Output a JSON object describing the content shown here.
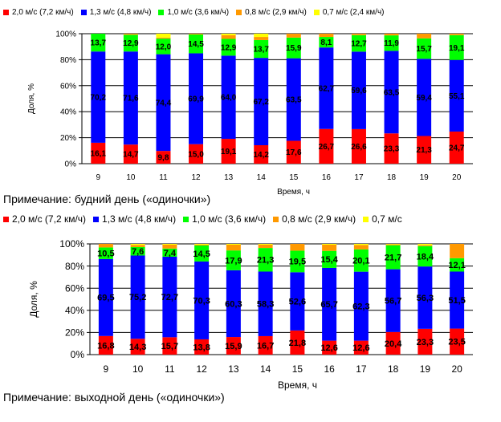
{
  "colors": {
    "s2_0": "#ff0000",
    "s1_3": "#0000ff",
    "s1_0": "#00ff00",
    "s0_8": "#ff9900",
    "s0_7": "#ffff00",
    "grid": "#000000"
  },
  "chart_data": [
    {
      "type": "bar",
      "stacked": true,
      "title": "",
      "xlabel": "Время, ч",
      "ylabel": "Доля, %",
      "ylim": [
        0,
        100
      ],
      "yticks": [
        "0%",
        "20%",
        "40%",
        "60%",
        "80%",
        "100%"
      ],
      "grid": true,
      "legend_position": "top",
      "categories": [
        "9",
        "10",
        "11",
        "12",
        "13",
        "14",
        "15",
        "16",
        "17",
        "18",
        "19",
        "20"
      ],
      "series": [
        {
          "name": "2,0 м/с (7,2 км/ч)",
          "color_key": "s2_0",
          "values": [
            16.1,
            14.7,
            9.8,
            15.0,
            19.1,
            14.2,
            17.6,
            26.7,
            26.6,
            23.3,
            21.3,
            24.7
          ],
          "labels": [
            "16,1",
            "14,7",
            "9,8",
            "15,0",
            "19,1",
            "14,2",
            "17,6",
            "26,7",
            "26,6",
            "23,3",
            "21,3",
            "24,7"
          ]
        },
        {
          "name": "1,3 м/с (4,8 км/ч)",
          "color_key": "s1_3",
          "values": [
            70.2,
            71.6,
            74.4,
            69.9,
            64.0,
            67.2,
            63.5,
            62.7,
            59.6,
            63.5,
            59.4,
            55.1
          ],
          "labels": [
            "70,2",
            "71,6",
            "74,4",
            "69,9",
            "64,0",
            "67,2",
            "63,5",
            "62,7",
            "59,6",
            "63,5",
            "59,4",
            "55,1"
          ]
        },
        {
          "name": "1,0 м/с (3,6 км/ч)",
          "color_key": "s1_0",
          "values": [
            13.7,
            12.9,
            12.0,
            14.5,
            12.9,
            13.7,
            15.9,
            8.1,
            12.7,
            11.9,
            15.7,
            19.1
          ],
          "labels": [
            "13,7",
            "12,9",
            "12,0",
            "14,5",
            "12,9",
            "13,7",
            "15,9",
            "8,1",
            "12,7",
            "11,9",
            "15,7",
            "19,1"
          ]
        },
        {
          "name": "0,8 м/с (2,9 км/ч)",
          "color_key": "s0_8",
          "values": [
            0,
            0.8,
            0.8,
            0.6,
            2.8,
            2.4,
            3.0,
            2.5,
            1.1,
            1.3,
            3.6,
            1.1
          ]
        },
        {
          "name": "0,7 м/с (2,4 км/ч)",
          "color_key": "s0_7",
          "values": [
            0,
            0,
            3.0,
            0,
            1.2,
            2.5,
            0,
            0,
            0,
            0,
            0,
            0
          ]
        }
      ],
      "note": "Примечание: будний день («одиночки»)"
    },
    {
      "type": "bar",
      "stacked": true,
      "title": "",
      "xlabel": "Время, ч",
      "ylabel": "Доля, %",
      "ylim": [
        0,
        100
      ],
      "yticks": [
        "0%",
        "20%",
        "40%",
        "60%",
        "80%",
        "100%"
      ],
      "grid": true,
      "legend_position": "top",
      "categories": [
        "9",
        "10",
        "11",
        "12",
        "13",
        "14",
        "15",
        "16",
        "17",
        "18",
        "19",
        "20"
      ],
      "series": [
        {
          "name": "2,0 м/с (7,2 км/ч)",
          "color_key": "s2_0",
          "values": [
            16.8,
            14.3,
            15.7,
            13.8,
            15.9,
            16.7,
            21.8,
            12.6,
            12.6,
            20.4,
            23.3,
            23.5
          ],
          "labels": [
            "16,8",
            "14,3",
            "15,7",
            "13,8",
            "15,9",
            "16,7",
            "21,8",
            "12,6",
            "12,6",
            "20,4",
            "23,3",
            "23,5"
          ]
        },
        {
          "name": "1,3 м/с (4,8 км/ч)",
          "color_key": "s1_3",
          "values": [
            69.5,
            75.2,
            72.7,
            70.3,
            60.3,
            58.3,
            52.6,
            65.7,
            62.3,
            56.7,
            56.3,
            51.5
          ],
          "labels": [
            "69,5",
            "75,2",
            "72,7",
            "70,3",
            "60,3",
            "58,3",
            "52,6",
            "65,7",
            "62,3",
            "56,7",
            "56,3",
            "51,5"
          ]
        },
        {
          "name": "1,0 м/с (3,6 км/ч)",
          "color_key": "s1_0",
          "values": [
            10.5,
            7.6,
            7.4,
            14.5,
            17.9,
            21.3,
            19.5,
            15.4,
            20.1,
            21.7,
            18.4,
            12.1
          ],
          "labels": [
            "10,5",
            "7,6",
            "7,4",
            "14,5",
            "17,9",
            "21,3",
            "19,5",
            "15,4",
            "20,1",
            "21,7",
            "18,4",
            "12,1"
          ]
        },
        {
          "name": "0,8 м/с (2,9 км/ч)",
          "color_key": "s0_8",
          "values": [
            3.2,
            2.0,
            3.5,
            0.7,
            5.2,
            3.0,
            6.1,
            5.6,
            4.0,
            0.8,
            1.0,
            12.9
          ]
        },
        {
          "name": "0,7 м/с",
          "color_key": "s0_7",
          "values": [
            0,
            0.9,
            0.7,
            0.7,
            0.7,
            0.7,
            0,
            0.7,
            1.0,
            0.4,
            1.0,
            0
          ]
        }
      ],
      "note": "Примечание: выходной день («одиночки»)"
    }
  ]
}
